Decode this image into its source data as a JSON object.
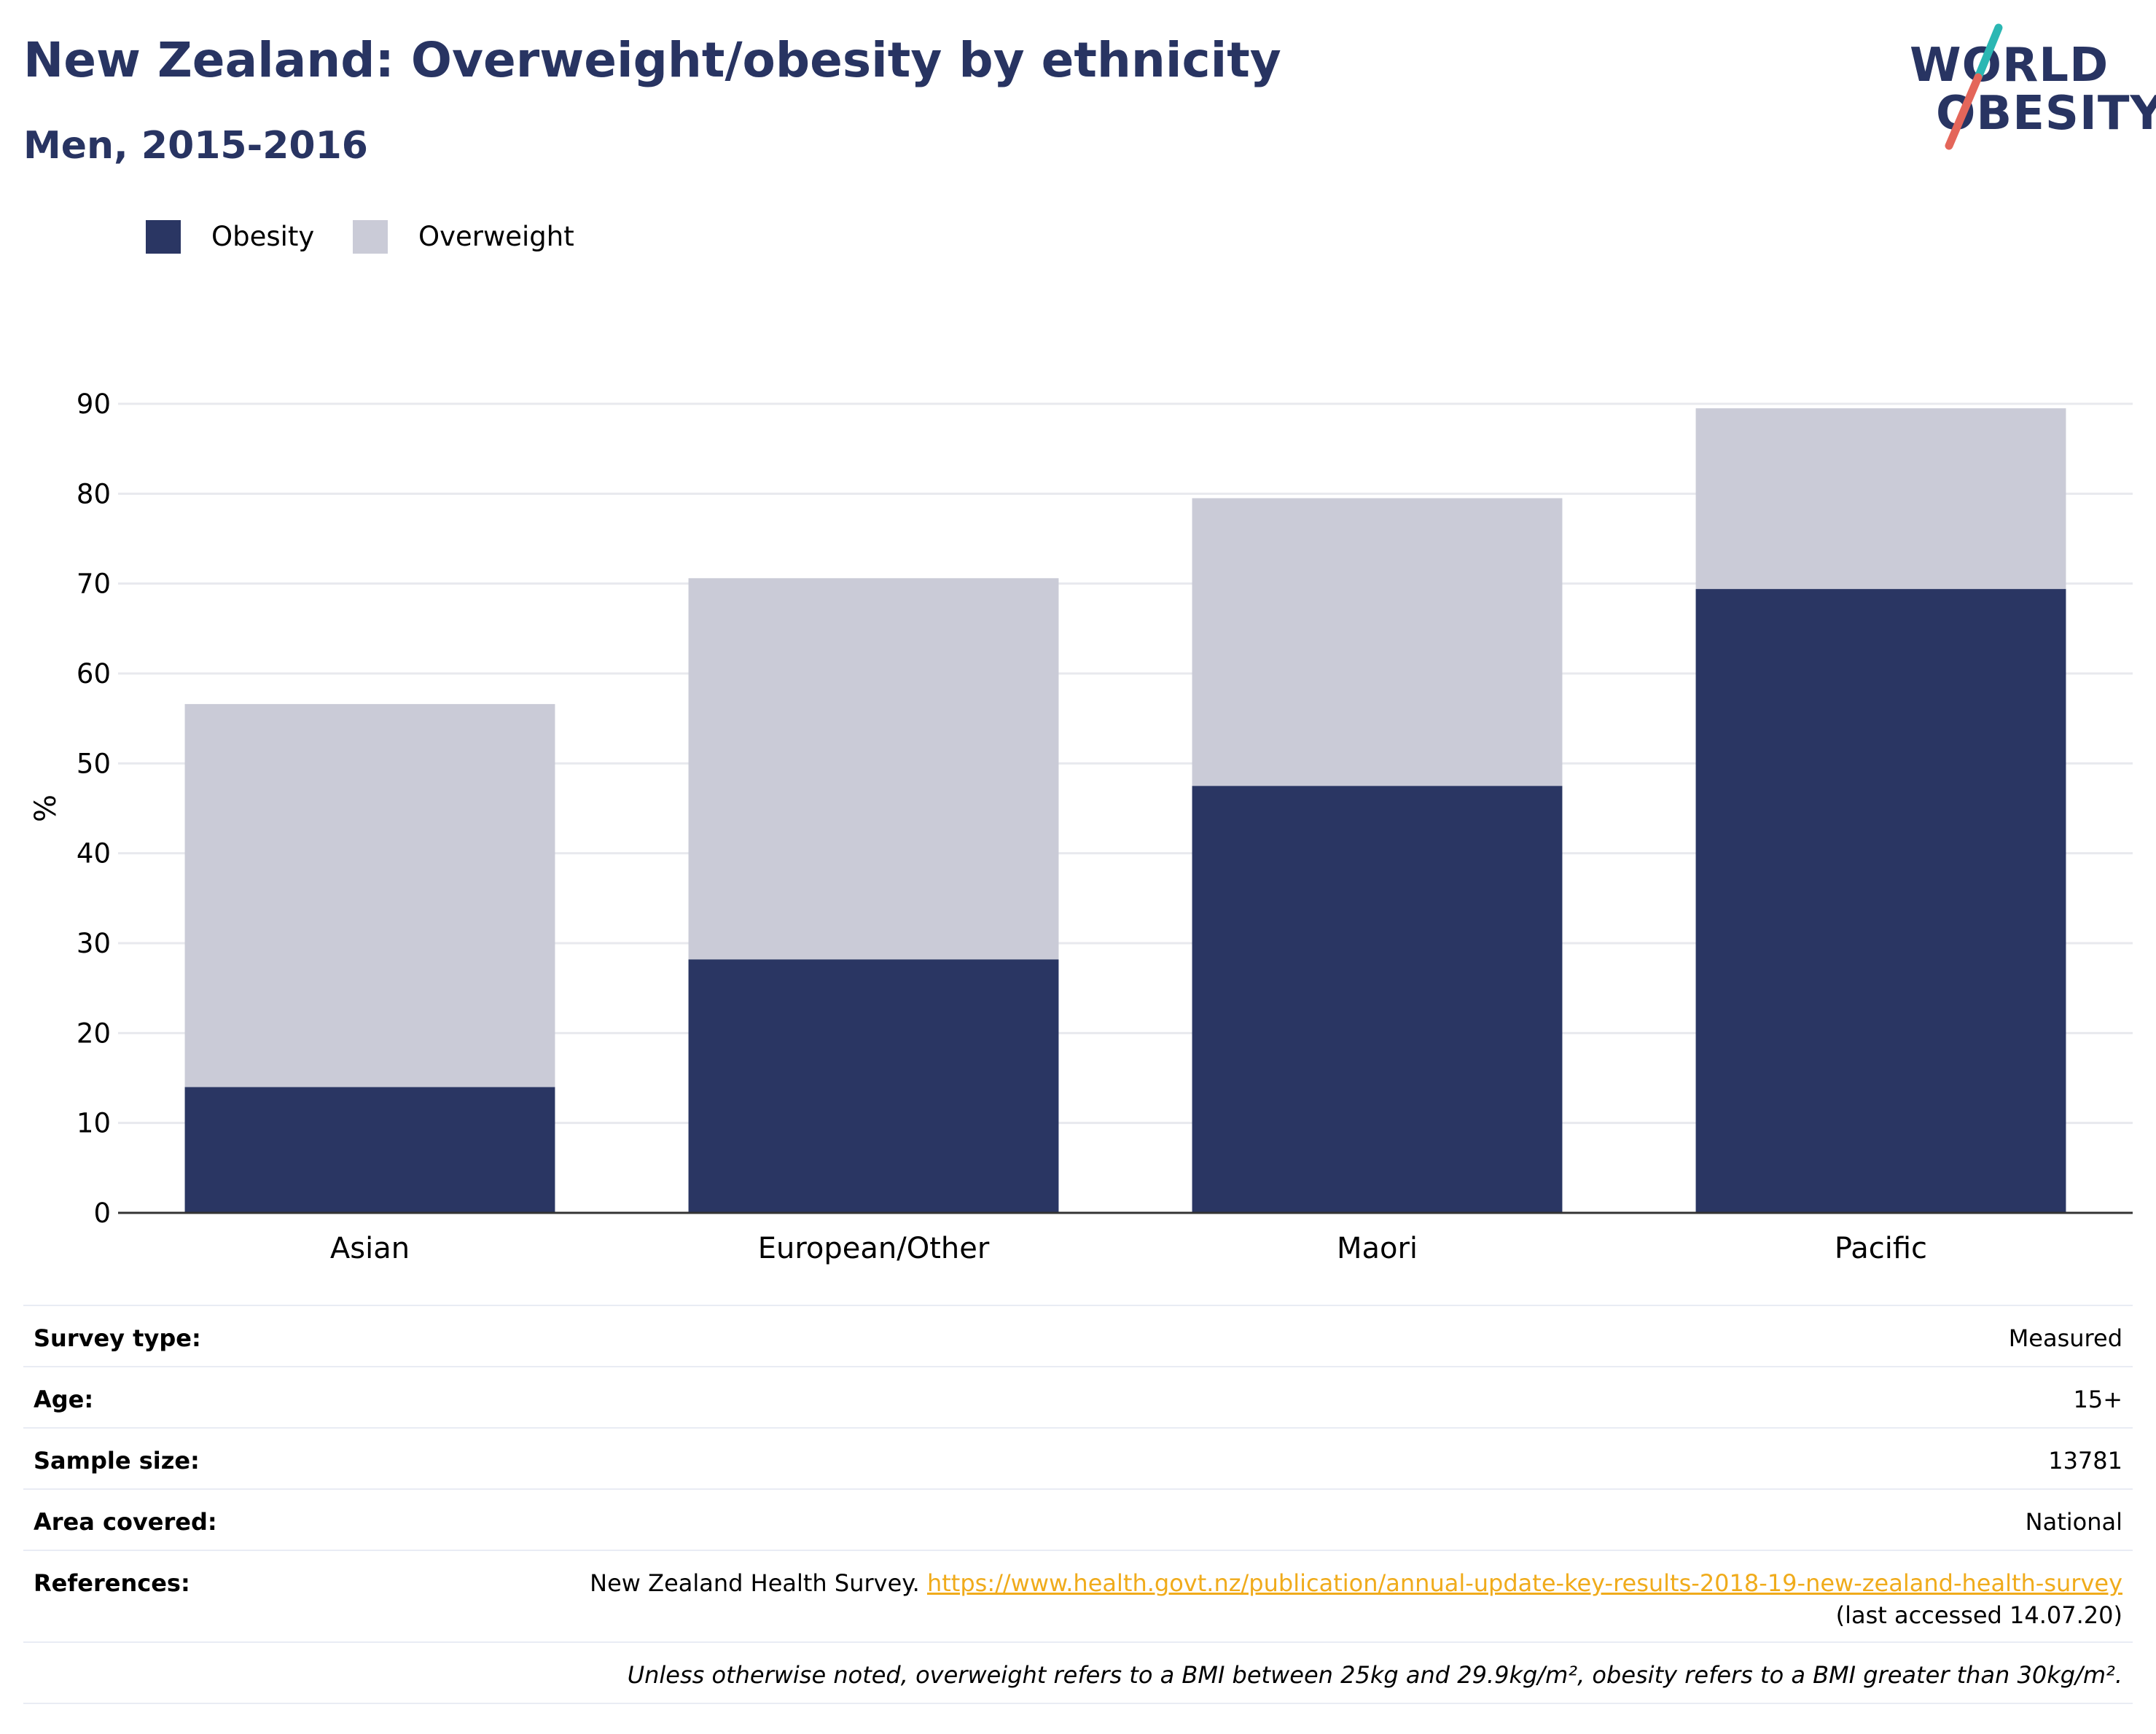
{
  "header": {
    "title": "New Zealand: Overweight/obesity by ethnicity",
    "subtitle": "Men, 2015-2016"
  },
  "logo": {
    "line1": "WORLD",
    "line2": "OBESITY",
    "colors": {
      "text": "#283462",
      "slash_top": "#2bb7b3",
      "slash_bottom": "#e4665a"
    }
  },
  "legend": {
    "items": [
      {
        "label": "Obesity",
        "color": "#2a3663"
      },
      {
        "label": "Overweight",
        "color": "#cacbd7"
      }
    ]
  },
  "chart_data": {
    "type": "bar",
    "stacked": true,
    "categories": [
      "Asian",
      "European/Other",
      "Maori",
      "Pacific"
    ],
    "series": [
      {
        "name": "Obesity",
        "color": "#2a3663",
        "values": [
          14,
          28.2,
          47.5,
          69.4
        ]
      },
      {
        "name": "Overweight",
        "color": "#cacbd7",
        "values": [
          42.6,
          42.4,
          32,
          20.1
        ]
      }
    ],
    "ylabel": "%",
    "xlabel": "",
    "ylim": [
      0,
      90
    ],
    "yticks": [
      "0",
      "10",
      "20",
      "30",
      "40",
      "50",
      "60",
      "70",
      "80",
      "90"
    ],
    "grid": true,
    "legend_position": "top-left"
  },
  "info": {
    "survey_type_label": "Survey type:",
    "survey_type_value": "Measured",
    "age_label": "Age:",
    "age_value": "15+",
    "sample_size_label": "Sample size:",
    "sample_size_value": "13781",
    "area_label": "Area covered:",
    "area_value": "National",
    "references_label": "References:",
    "references_text": "New Zealand Health Survey. ",
    "references_link": "https://www.health.govt.nz/publication/annual-update-key-results-2018-19-new-zealand-health-survey",
    "references_accessed": "(last accessed 14.07.20)",
    "note": "Unless otherwise noted, overweight refers to a BMI between 25kg and 29.9kg/m², obesity refers to a BMI greater than 30kg/m²."
  }
}
